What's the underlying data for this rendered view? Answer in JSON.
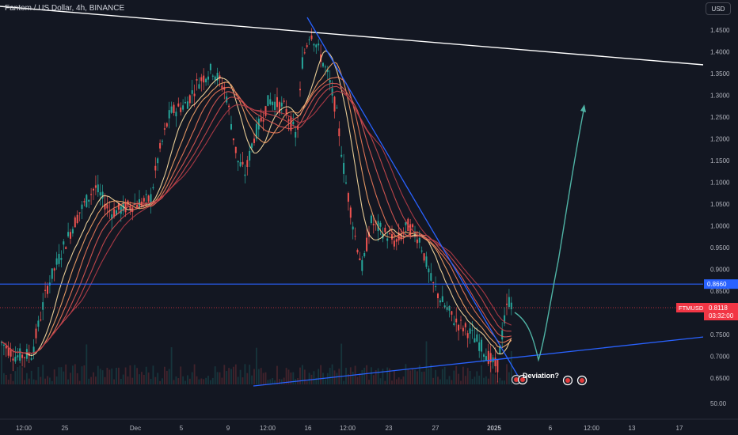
{
  "header": {
    "title": "Fantom / US Dollar, 4h, BINANCE",
    "currency": "USD"
  },
  "chart_data": {
    "type": "candlestick",
    "symbol": "FTMUSD",
    "price_scale": {
      "ticks": [
        "1.4500",
        "1.4000",
        "1.3500",
        "1.3000",
        "1.2500",
        "1.2000",
        "1.1500",
        "1.1000",
        "1.0500",
        "1.0000",
        "0.9500",
        "0.9000",
        "0.8500",
        "0.8000",
        "0.7500",
        "0.7000",
        "0.6500"
      ],
      "ylim": [
        0.62,
        1.485
      ]
    },
    "volume_label": "50.00",
    "time_labels": [
      "12:00",
      "25",
      "Dec",
      "5",
      "9",
      "12:00",
      "16",
      "12:00",
      "23",
      "27",
      "2025",
      "6",
      "12:00",
      "13",
      "17"
    ],
    "last_price": {
      "label": "FTMUSD",
      "value": "0.8118",
      "countdown": "03:32:00",
      "price": 0.8118
    },
    "horizontal_level": {
      "price": 0.866,
      "label": "0.8660"
    },
    "annotation_text": "Deviation?",
    "overlays": {
      "white_trendline": "descending resistance from top-left",
      "blue_line": "descending trendline from the peak near 1.47",
      "blue_support": "ascending support line near 0.64–0.75",
      "projection": "teal projected path dipping to ~0.69 then rising to ~1.27",
      "ribbon": "orange/red moving-average ribbon"
    },
    "colors": {
      "background": "#131722",
      "up": "#26a69a",
      "down": "#ef5350",
      "level_line": "#2962ff",
      "trend_white": "#ffffff",
      "projection": "#4fb3a5",
      "price_tag": "#f23645"
    }
  }
}
